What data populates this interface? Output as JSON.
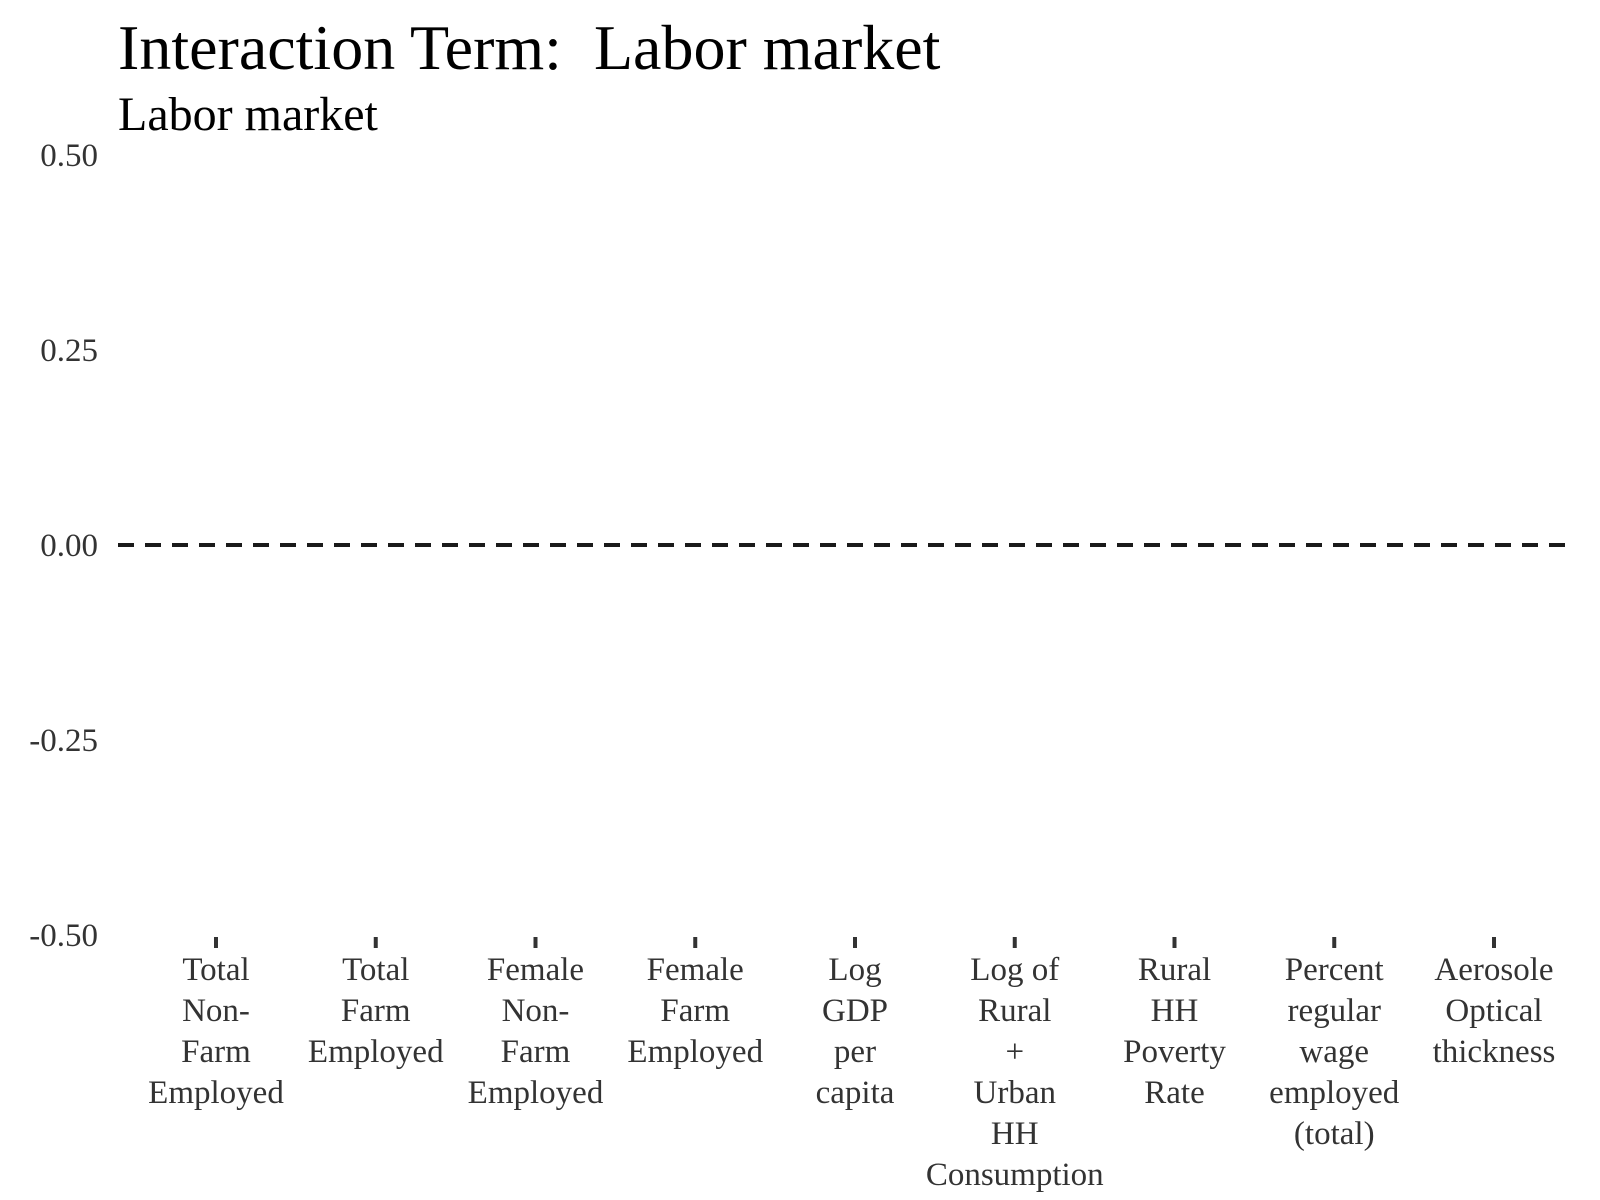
{
  "chart_data": {
    "type": "scatter",
    "title": "Interaction Term:  Labor market",
    "subtitle": "Labor market",
    "xlabel": "",
    "ylabel": "",
    "ylim": [
      -0.5,
      0.5
    ],
    "yticks": [
      "0.50",
      "0.25",
      "0.00",
      "-0.25",
      "-0.50"
    ],
    "ytick_values": [
      0.5,
      0.25,
      0.0,
      -0.25,
      -0.5
    ],
    "categories": [
      [
        "Total",
        "Non-",
        "Farm",
        "Employed"
      ],
      [
        "Total",
        "Farm",
        "Employed"
      ],
      [
        "Female",
        "Non-",
        "Farm",
        "Employed"
      ],
      [
        "Female",
        "Farm",
        "Employed"
      ],
      [
        "Log",
        "GDP",
        "per",
        "capita"
      ],
      [
        "Log of",
        "Rural",
        "+",
        "Urban",
        "HH",
        "Consumption"
      ],
      [
        "Rural",
        "HH",
        "Poverty",
        "Rate"
      ],
      [
        "Percent",
        "regular",
        "wage",
        "employed",
        "(total)"
      ],
      [
        "Aerosole",
        "Optical",
        "thickness"
      ]
    ],
    "series": [],
    "reference_line": {
      "y": 0.0,
      "style": "dashed"
    },
    "grid": false,
    "legend": "none",
    "colors": {
      "reference_line": "#1a1a1a",
      "tick_text": "#333333",
      "tick_mark": "#333333"
    }
  }
}
